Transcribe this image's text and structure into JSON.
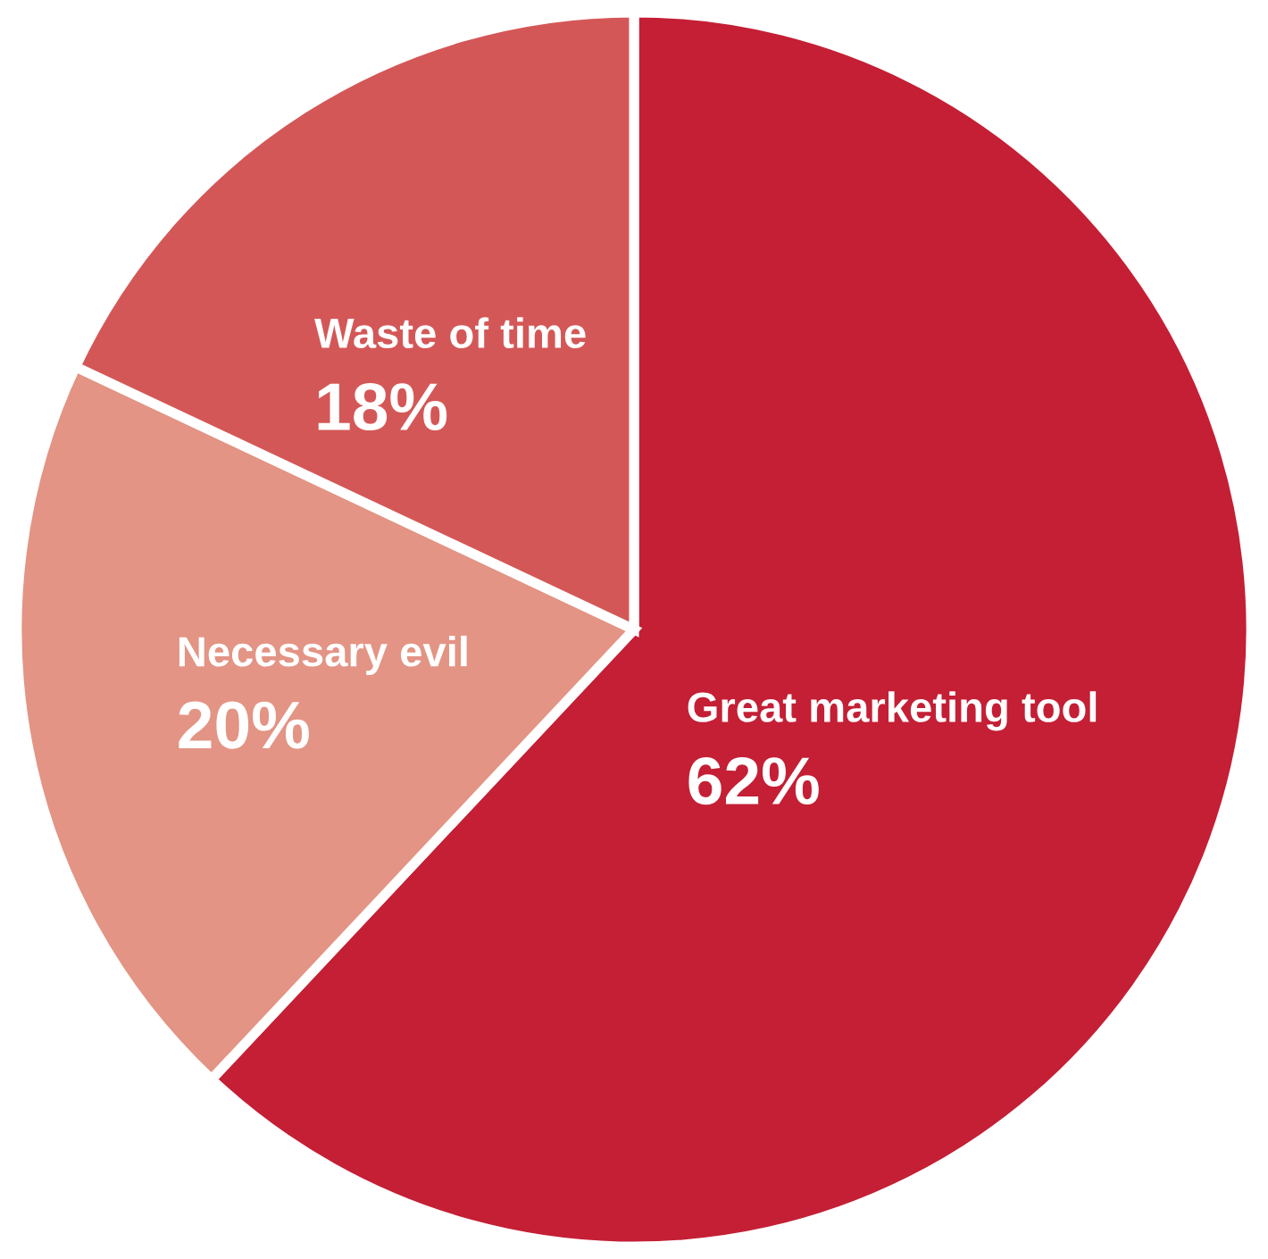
{
  "chart_data": {
    "type": "pie",
    "categories": [
      "Great marketing tool",
      "Necessary evil",
      "Waste of time"
    ],
    "values": [
      62,
      20,
      18
    ],
    "value_labels": [
      "62%",
      "20%",
      "18%"
    ],
    "colors": [
      "#c41f35",
      "#e39484",
      "#d45757"
    ],
    "legend": false
  }
}
